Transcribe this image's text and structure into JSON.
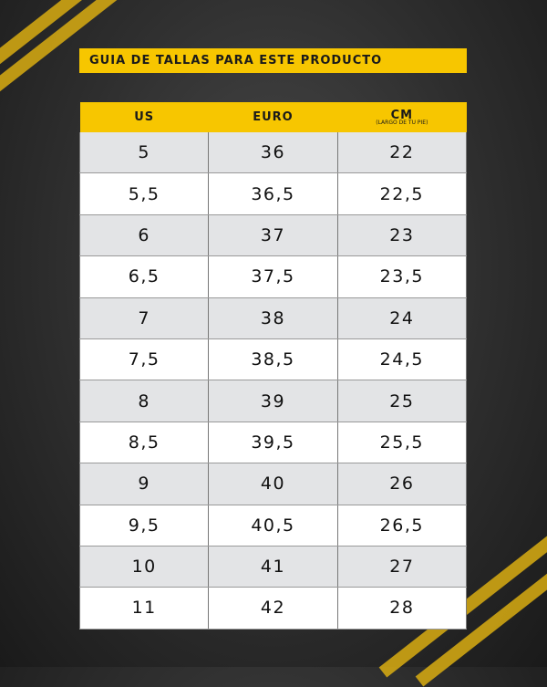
{
  "title": "GUIA DE TALLAS PARA ESTE PRODUCTO",
  "colors": {
    "accent": "#f7c600",
    "row_alt": "#e3e4e6",
    "row": "#ffffff"
  },
  "table": {
    "headers": [
      {
        "label": "US",
        "sub": ""
      },
      {
        "label": "EURO",
        "sub": ""
      },
      {
        "label": "CM",
        "sub": "(LARGO DE TU PIE)"
      }
    ],
    "rows": [
      [
        "5",
        "36",
        "22"
      ],
      [
        "5,5",
        "36,5",
        "22,5"
      ],
      [
        "6",
        "37",
        "23"
      ],
      [
        "6,5",
        "37,5",
        "23,5"
      ],
      [
        "7",
        "38",
        "24"
      ],
      [
        "7,5",
        "38,5",
        "24,5"
      ],
      [
        "8",
        "39",
        "25"
      ],
      [
        "8,5",
        "39,5",
        "25,5"
      ],
      [
        "9",
        "40",
        "26"
      ],
      [
        "9,5",
        "40,5",
        "26,5"
      ],
      [
        "10",
        "41",
        "27"
      ],
      [
        "11",
        "42",
        "28"
      ]
    ]
  }
}
